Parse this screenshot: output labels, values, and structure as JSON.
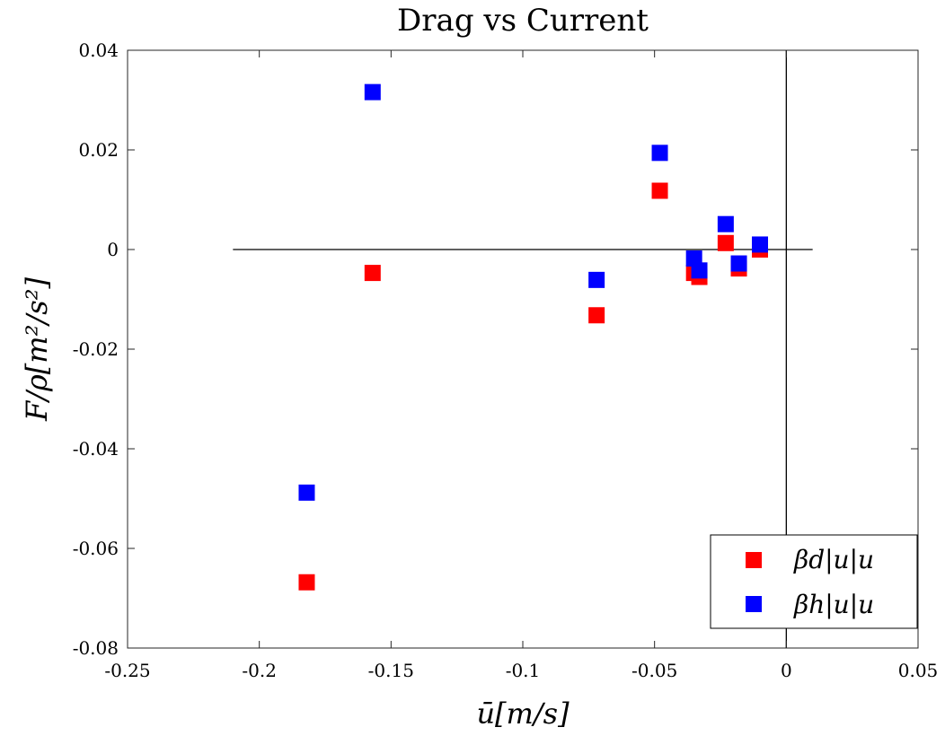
{
  "chart_data": {
    "type": "scatter",
    "title": "Drag vs Current",
    "xlabel": "ū[m/s]",
    "ylabel": "F/ρ[m²/s²]",
    "xlim": [
      -0.25,
      0.05
    ],
    "ylim": [
      -0.08,
      0.04
    ],
    "x_ticks": [
      -0.25,
      -0.2,
      -0.15,
      -0.1,
      -0.05,
      0,
      0.05
    ],
    "x_tick_labels": [
      "-0.25",
      "-0.2",
      "-0.15",
      "-0.1",
      "-0.05",
      "0",
      "0.05"
    ],
    "y_ticks": [
      0.04,
      0.02,
      0,
      -0.02,
      -0.04,
      -0.06,
      -0.08
    ],
    "y_tick_labels": [
      "0.04",
      "0.02",
      "0",
      "-0.02",
      "-0.04",
      "-0.06",
      "-0.08"
    ],
    "grid": false,
    "legend_position": "bottom-right",
    "reference_lines": {
      "horizontal": {
        "y": 0,
        "x_range": [
          -0.21,
          0.01
        ]
      },
      "vertical": {
        "x": 0,
        "y_range": [
          -0.08,
          0.04
        ]
      }
    },
    "series": [
      {
        "name": "βd|u|u",
        "color": "#ff0000",
        "marker": "square",
        "x": [
          -0.182,
          -0.157,
          -0.072,
          -0.048,
          -0.035,
          -0.033,
          -0.023,
          -0.018,
          -0.01
        ],
        "y": [
          -0.0668,
          -0.0047,
          -0.0132,
          0.0118,
          -0.0047,
          -0.0055,
          0.0013,
          -0.0038,
          0.0
        ]
      },
      {
        "name": "βh|u|u",
        "color": "#0000ff",
        "marker": "square",
        "x": [
          -0.182,
          -0.157,
          -0.072,
          -0.048,
          -0.035,
          -0.033,
          -0.023,
          -0.018,
          -0.01
        ],
        "y": [
          -0.0488,
          0.0316,
          -0.0061,
          0.0194,
          -0.0018,
          -0.0042,
          0.0051,
          -0.0028,
          0.001
        ]
      }
    ]
  }
}
